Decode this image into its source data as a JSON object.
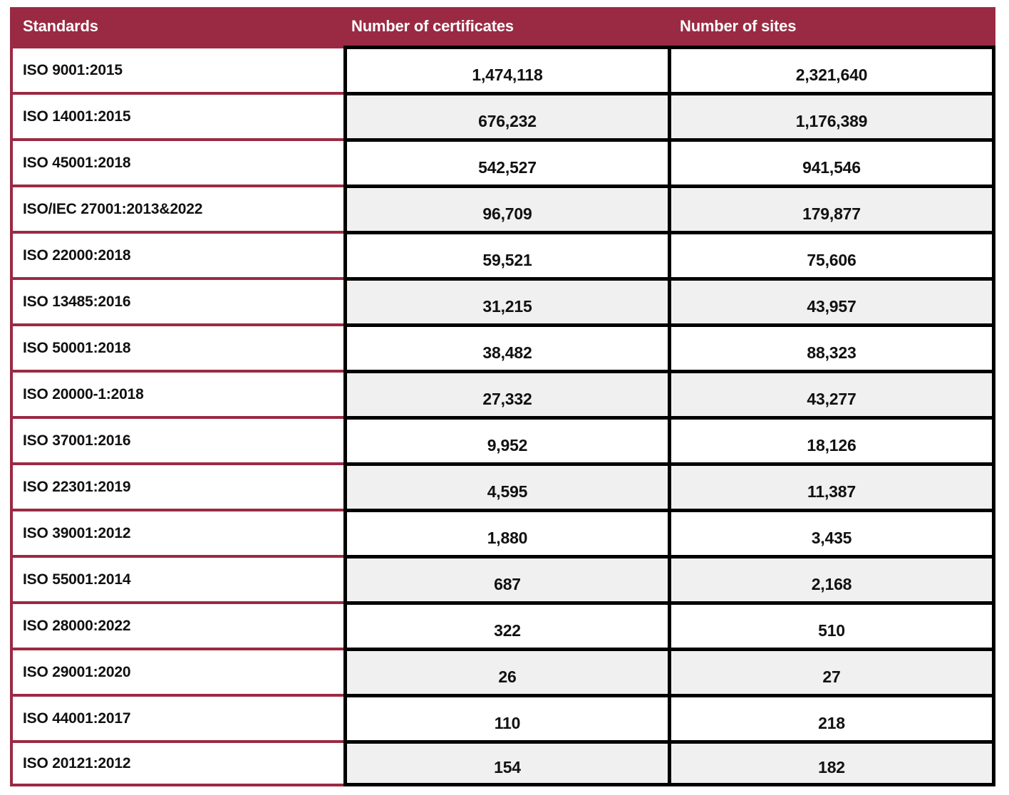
{
  "chart_data": {
    "type": "table",
    "columns": [
      "Standards",
      "Number of certificates",
      "Number of sites"
    ],
    "rows": [
      {
        "standard": "ISO 9001:2015",
        "certificates": "1,474,118",
        "sites": "2,321,640"
      },
      {
        "standard": "ISO 14001:2015",
        "certificates": "676,232",
        "sites": "1,176,389"
      },
      {
        "standard": "ISO 45001:2018",
        "certificates": "542,527",
        "sites": "941,546"
      },
      {
        "standard": "ISO/IEC 27001:2013&2022",
        "certificates": "96,709",
        "sites": "179,877"
      },
      {
        "standard": "ISO 22000:2018",
        "certificates": "59,521",
        "sites": "75,606"
      },
      {
        "standard": "ISO 13485:2016",
        "certificates": "31,215",
        "sites": "43,957"
      },
      {
        "standard": "ISO 50001:2018",
        "certificates": "38,482",
        "sites": "88,323"
      },
      {
        "standard": "ISO 20000-1:2018",
        "certificates": "27,332",
        "sites": "43,277"
      },
      {
        "standard": "ISO 37001:2016",
        "certificates": "9,952",
        "sites": "18,126"
      },
      {
        "standard": "ISO 22301:2019",
        "certificates": "4,595",
        "sites": "11,387"
      },
      {
        "standard": "ISO 39001:2012",
        "certificates": "1,880",
        "sites": "3,435"
      },
      {
        "standard": "ISO 55001:2014",
        "certificates": "687",
        "sites": "2,168"
      },
      {
        "standard": "ISO 28000:2022",
        "certificates": "322",
        "sites": "510"
      },
      {
        "standard": "ISO 29001:2020",
        "certificates": "26",
        "sites": "27"
      },
      {
        "standard": "ISO 44001:2017",
        "certificates": "110",
        "sites": "218"
      },
      {
        "standard": "ISO 20121:2012",
        "certificates": "154",
        "sites": "182"
      }
    ]
  },
  "colors": {
    "header_bg": "#9A2A43",
    "header_text": "#FFFFFF",
    "accent_border": "#9A2A43",
    "grid_border": "#000000",
    "alt_row_bg": "#F0F0F0"
  }
}
